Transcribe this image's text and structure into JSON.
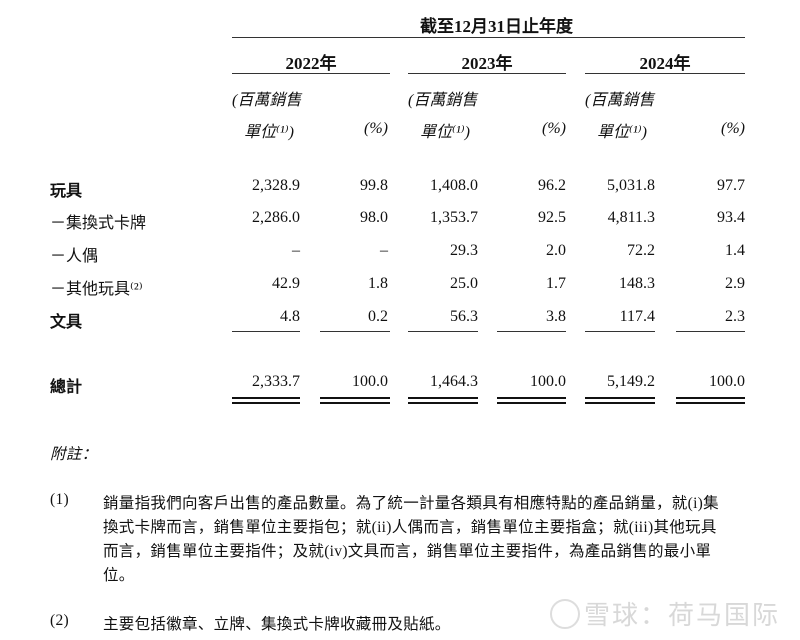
{
  "table": {
    "period_header": "截至12月31日止年度",
    "years": [
      "2022年",
      "2023年",
      "2024年"
    ],
    "unit_line1": "(百萬銷售",
    "unit_line2": "單位⁽¹⁾)",
    "pct_header": "(%)",
    "rows": [
      {
        "label": "玩具",
        "bold": true,
        "values": [
          "2,328.9",
          "99.8",
          "1,408.0",
          "96.2",
          "5,031.8",
          "97.7"
        ]
      },
      {
        "label": "－集換式卡牌",
        "bold": false,
        "values": [
          "2,286.0",
          "98.0",
          "1,353.7",
          "92.5",
          "4,811.3",
          "93.4"
        ]
      },
      {
        "label": "－人偶",
        "bold": false,
        "values": [
          "–",
          "–",
          "29.3",
          "2.0",
          "72.2",
          "1.4"
        ]
      },
      {
        "label": "－其他玩具⁽²⁾",
        "bold": false,
        "values": [
          "42.9",
          "1.8",
          "25.0",
          "1.7",
          "148.3",
          "2.9"
        ]
      },
      {
        "label": "文具",
        "bold": true,
        "values": [
          "4.8",
          "0.2",
          "56.3",
          "3.8",
          "117.4",
          "2.3"
        ]
      }
    ],
    "total": {
      "label": "總計",
      "values": [
        "2,333.7",
        "100.0",
        "1,464.3",
        "100.0",
        "5,149.2",
        "100.0"
      ]
    }
  },
  "notes": {
    "heading": "附註：",
    "items": [
      {
        "num": "(1)",
        "lines": [
          "銷量指我們向客戶出售的產品數量。為了統一計量各類具有相應特點的產品銷量，就(i)集",
          "換式卡牌而言，銷售單位主要指包；就(ii)人偶而言，銷售單位主要指盒；就(iii)其他玩具",
          "而言，銷售單位主要指件；及就(iv)文具而言，銷售單位主要指件，為產品銷售的最小單",
          "位。"
        ]
      },
      {
        "num": "(2)",
        "lines": [
          "主要包括徽章、立牌、集換式卡牌收藏冊及貼紙。"
        ]
      }
    ]
  },
  "watermark": "雪球：荷马国际"
}
